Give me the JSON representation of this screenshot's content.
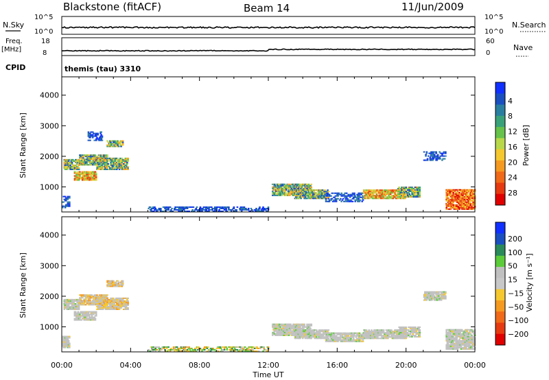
{
  "header": {
    "station": "Blackstone (fitACF)",
    "beam": "Beam 14",
    "date": "11/Jun/2009"
  },
  "top_panels": {
    "nsky_label": "N.Sky",
    "nsky_ticks": [
      "10^5",
      "10^0"
    ],
    "nsearch_label": "N.Search",
    "nsearch_ticks": [
      "10^5",
      "10^0"
    ],
    "freq_label": "Freq.",
    "freq_unit": "[MHz]",
    "freq_ticks": [
      "18",
      "8"
    ],
    "nave_label": "Nave",
    "nave_ticks": [
      "60",
      "0"
    ],
    "cpid_label": "CPID",
    "cpid_value": "themis (tau) 3310"
  },
  "chart_data": [
    {
      "type": "heatmap",
      "panel": "power",
      "ylabel": "Slant Range [km]",
      "yticks": [
        "1000",
        "2000",
        "3000",
        "4000"
      ],
      "ylim": [
        180,
        4600
      ],
      "xlim_hours": [
        0,
        24
      ],
      "colorbar": {
        "label": "Power [dB]",
        "ticks": [
          "4",
          "8",
          "12",
          "16",
          "20",
          "24",
          "28"
        ],
        "colors": [
          "#1030ff",
          "#1a4fc0",
          "#2a7fa0",
          "#3aa27a",
          "#66c24a",
          "#b8d84a",
          "#f5c830",
          "#f59a20",
          "#f06a18",
          "#e63a10",
          "#e00000"
        ]
      },
      "echo_regions": [
        {
          "t0": 0.0,
          "t1": 0.4,
          "r0": 300,
          "r1": 700,
          "level": "low"
        },
        {
          "t0": 0.1,
          "t1": 1.0,
          "r0": 1550,
          "r1": 1900,
          "level": "mid"
        },
        {
          "t0": 0.7,
          "t1": 2.0,
          "r0": 1200,
          "r1": 1500,
          "level": "high"
        },
        {
          "t0": 1.0,
          "t1": 2.6,
          "r0": 1700,
          "r1": 2050,
          "level": "mid"
        },
        {
          "t0": 2.0,
          "t1": 3.8,
          "r0": 1550,
          "r1": 1950,
          "level": "mid"
        },
        {
          "t0": 2.6,
          "t1": 3.5,
          "r0": 2300,
          "r1": 2500,
          "level": "mid"
        },
        {
          "t0": 1.5,
          "t1": 2.3,
          "r0": 2500,
          "r1": 2800,
          "level": "low"
        },
        {
          "t0": 12.2,
          "t1": 14.5,
          "r0": 700,
          "r1": 1100,
          "level": "mid"
        },
        {
          "t0": 13.5,
          "t1": 15.5,
          "r0": 600,
          "r1": 900,
          "level": "mid"
        },
        {
          "t0": 15.3,
          "t1": 17.5,
          "r0": 500,
          "r1": 800,
          "level": "low"
        },
        {
          "t0": 17.5,
          "t1": 20.0,
          "r0": 600,
          "r1": 900,
          "level": "high"
        },
        {
          "t0": 19.5,
          "t1": 20.8,
          "r0": 650,
          "r1": 1000,
          "level": "mid"
        },
        {
          "t0": 21.0,
          "t1": 22.3,
          "r0": 1850,
          "r1": 2150,
          "level": "low"
        },
        {
          "t0": 22.3,
          "t1": 24.0,
          "r0": 250,
          "r1": 900,
          "level": "peak"
        },
        {
          "t0": 5.0,
          "t1": 12.0,
          "r0": 180,
          "r1": 330,
          "level": "low"
        }
      ]
    },
    {
      "type": "heatmap",
      "panel": "velocity",
      "ylabel": "Slant Range [km]",
      "yticks": [
        "1000",
        "2000",
        "3000",
        "4000"
      ],
      "ylim": [
        180,
        4600
      ],
      "xlim_hours": [
        0,
        24
      ],
      "xticks": [
        "00:00",
        "04:00",
        "08:00",
        "12:00",
        "16:00",
        "20:00",
        "00:00"
      ],
      "xlabel": "Time UT",
      "colorbar": {
        "label": "Velocity [m s⁻¹]",
        "ticks": [
          "200",
          "100",
          "50",
          "15",
          "−15",
          "−50",
          "−100",
          "−200"
        ],
        "colors": [
          "#1030ff",
          "#1a4fc0",
          "#2a8a5a",
          "#5ccc3a",
          "#c0c0c0",
          "#c8c8c8",
          "#f5c830",
          "#f59a20",
          "#f06a18",
          "#e63a10",
          "#e00000"
        ]
      },
      "echo_regions": [
        {
          "t0": 0.0,
          "t1": 0.4,
          "r0": 300,
          "r1": 700,
          "level": "grey"
        },
        {
          "t0": 0.1,
          "t1": 1.0,
          "r0": 1550,
          "r1": 1900,
          "level": "grey"
        },
        {
          "t0": 0.7,
          "t1": 2.0,
          "r0": 1200,
          "r1": 1500,
          "level": "grey"
        },
        {
          "t0": 1.0,
          "t1": 2.6,
          "r0": 1700,
          "r1": 2050,
          "level": "orange"
        },
        {
          "t0": 2.0,
          "t1": 3.8,
          "r0": 1550,
          "r1": 1950,
          "level": "orange"
        },
        {
          "t0": 2.6,
          "t1": 3.5,
          "r0": 2300,
          "r1": 2500,
          "level": "orange"
        },
        {
          "t0": 12.2,
          "t1": 14.5,
          "r0": 700,
          "r1": 1100,
          "level": "grey"
        },
        {
          "t0": 13.5,
          "t1": 15.5,
          "r0": 600,
          "r1": 900,
          "level": "grey"
        },
        {
          "t0": 15.3,
          "t1": 17.5,
          "r0": 500,
          "r1": 800,
          "level": "grey"
        },
        {
          "t0": 17.5,
          "t1": 20.0,
          "r0": 600,
          "r1": 900,
          "level": "grey"
        },
        {
          "t0": 19.5,
          "t1": 20.8,
          "r0": 650,
          "r1": 1000,
          "level": "grey"
        },
        {
          "t0": 21.0,
          "t1": 22.3,
          "r0": 1850,
          "r1": 2150,
          "level": "grey"
        },
        {
          "t0": 22.3,
          "t1": 24.0,
          "r0": 250,
          "r1": 900,
          "level": "grey"
        },
        {
          "t0": 5.0,
          "t1": 12.0,
          "r0": 180,
          "r1": 330,
          "level": "mixed"
        }
      ]
    }
  ]
}
